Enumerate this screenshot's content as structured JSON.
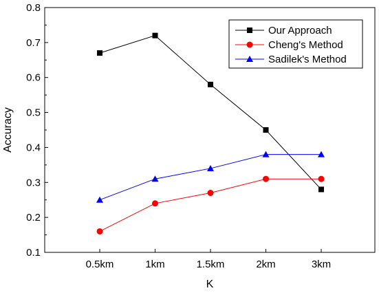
{
  "chart_data": {
    "type": "line",
    "categories": [
      "0.5km",
      "1km",
      "1.5km",
      "2km",
      "3km"
    ],
    "xlabel": "K",
    "ylabel": "Accuracy",
    "ylim": [
      0.1,
      0.8
    ],
    "yticks": [
      "0.1",
      "0.2",
      "0.3",
      "0.4",
      "0.5",
      "0.6",
      "0.7",
      "0.8"
    ],
    "grid": false,
    "legend_position": "top-right",
    "series": [
      {
        "name": "Our Approach",
        "values": [
          0.67,
          0.72,
          0.58,
          0.45,
          0.28
        ],
        "color": "#000000",
        "marker": "square"
      },
      {
        "name": "Cheng's Method",
        "values": [
          0.16,
          0.24,
          0.27,
          0.31,
          0.31
        ],
        "color": "#ff0000",
        "marker": "circle"
      },
      {
        "name": "Sadilek's Method",
        "values": [
          0.25,
          0.31,
          0.34,
          0.38,
          0.38
        ],
        "color": "#0000ff",
        "marker": "triangle"
      }
    ]
  }
}
